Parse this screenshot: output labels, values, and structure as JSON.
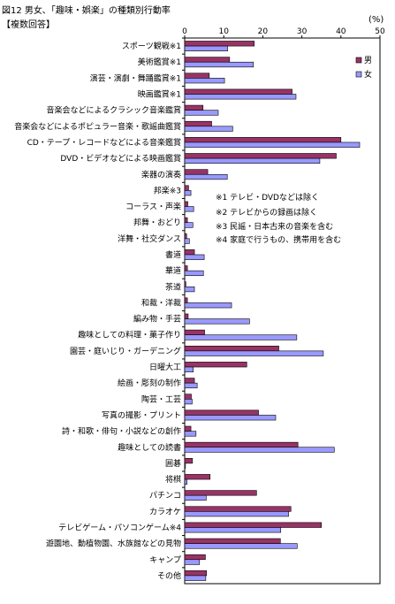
{
  "title": "図12  男女､「趣味・娯楽」の種類別行動率",
  "subtitle": "【複数回答】",
  "unit": "(%)",
  "notes": [
    "※1  テレビ・DVDなどは除く",
    "※2  テレビからの録画は除く",
    "※3  民謡・日本古来の音楽を含む",
    "※4  家庭で行うもの、携帯用を含む"
  ],
  "colors": {
    "male": "#993366",
    "female": "#9999ff",
    "outline": "#000000"
  },
  "chart_data": {
    "type": "bar",
    "orientation": "horizontal",
    "xlim": [
      0,
      50
    ],
    "xticks": [
      0,
      10,
      20,
      30,
      40,
      50
    ],
    "grid": false,
    "legend": "top-right",
    "categories": [
      "スポーツ観戦※1",
      "美術鑑賞※1",
      "演芸・演劇・舞踊鑑賞※1",
      "映画鑑賞※1",
      "音楽会などによるクラシック音楽鑑賞",
      "音楽会などによるポピュラー音楽・歌謡曲鑑賞",
      "CD・テープ・レコードなどによる音楽鑑賞",
      "DVD・ビデオなどによる映画鑑賞",
      "楽器の演奏",
      "邦楽※3",
      "コーラス・声楽",
      "邦舞・おどり",
      "洋舞・社交ダンス",
      "書道",
      "華道",
      "茶道",
      "和裁・洋裁",
      "編み物・手芸",
      "趣味としての料理・菓子作り",
      "園芸・庭いじり・ガーデニング",
      "日曜大工",
      "絵画・彫刻の制作",
      "陶芸・工芸",
      "写真の撮影・プリント",
      "詩・和歌・俳句・小説などの創作",
      "趣味としての読書",
      "囲碁",
      "将棋",
      "パチンコ",
      "カラオケ",
      "テレビゲーム・パソコンゲーム※4",
      "遊園地、動植物園、水族館などの見物",
      "キャンプ",
      "その他"
    ],
    "series": [
      {
        "name": "男",
        "values": [
          17.8,
          11.5,
          6.3,
          27.5,
          4.7,
          6.9,
          40.0,
          38.8,
          5.9,
          1.0,
          0.8,
          0.7,
          0.5,
          2.5,
          0.7,
          0.3,
          0.7,
          0.9,
          5.1,
          24.1,
          15.9,
          2.5,
          1.7,
          18.9,
          1.6,
          29.0,
          2.0,
          6.5,
          18.4,
          27.2,
          35.0,
          24.5,
          5.3,
          5.6
        ]
      },
      {
        "name": "女",
        "values": [
          11.0,
          17.6,
          10.2,
          28.5,
          8.6,
          12.3,
          44.8,
          34.6,
          10.9,
          1.6,
          2.3,
          2.1,
          1.2,
          5.0,
          4.8,
          2.5,
          12.0,
          16.6,
          28.7,
          35.5,
          2.2,
          3.2,
          1.9,
          23.3,
          2.9,
          38.3,
          0.2,
          0.6,
          5.5,
          26.6,
          24.6,
          28.8,
          3.8,
          5.4
        ]
      }
    ]
  }
}
